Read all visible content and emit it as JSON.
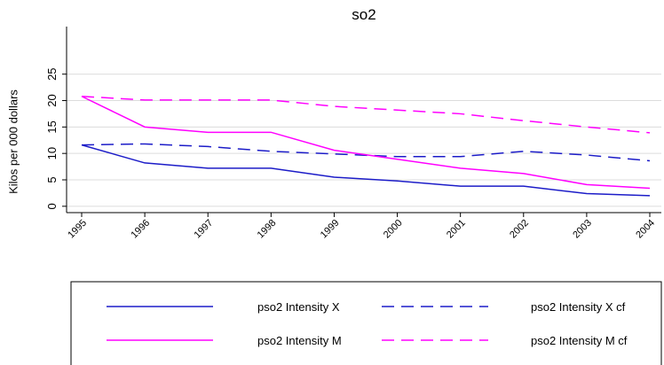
{
  "chart_data": {
    "type": "line",
    "title": "so2",
    "y_label": "Kilos per 000 dollars",
    "categories": [
      "1995",
      "1996",
      "1997",
      "1998",
      "1999",
      "2000",
      "2001",
      "2002",
      "2003",
      "2004"
    ],
    "series": [
      {
        "name": "pso2 Intensity X",
        "color": "#1c1cc8",
        "style": "solid",
        "values": [
          11.6,
          8.2,
          7.2,
          7.2,
          5.5,
          4.8,
          3.8,
          3.8,
          2.4,
          2.0
        ]
      },
      {
        "name": "pso2 Intensity X cf",
        "color": "#1c1cc8",
        "style": "dashed",
        "values": [
          11.6,
          11.8,
          11.3,
          10.4,
          9.9,
          9.4,
          9.4,
          10.4,
          9.7,
          8.6
        ]
      },
      {
        "name": "pso2 Intensity M",
        "color": "#ff00ff",
        "style": "solid",
        "values": [
          20.8,
          15.0,
          14.0,
          14.0,
          10.6,
          8.9,
          7.2,
          6.2,
          4.1,
          3.4
        ]
      },
      {
        "name": "pso2 Intensity M cf",
        "color": "#ff00ff",
        "style": "dashed",
        "values": [
          20.8,
          20.1,
          20.1,
          20.1,
          18.9,
          18.2,
          17.5,
          16.2,
          15.0,
          13.9
        ]
      }
    ],
    "ylim": [
      -1.2,
      34
    ],
    "yticks": [
      0,
      5,
      10,
      15,
      20,
      25
    ],
    "grid": true
  }
}
